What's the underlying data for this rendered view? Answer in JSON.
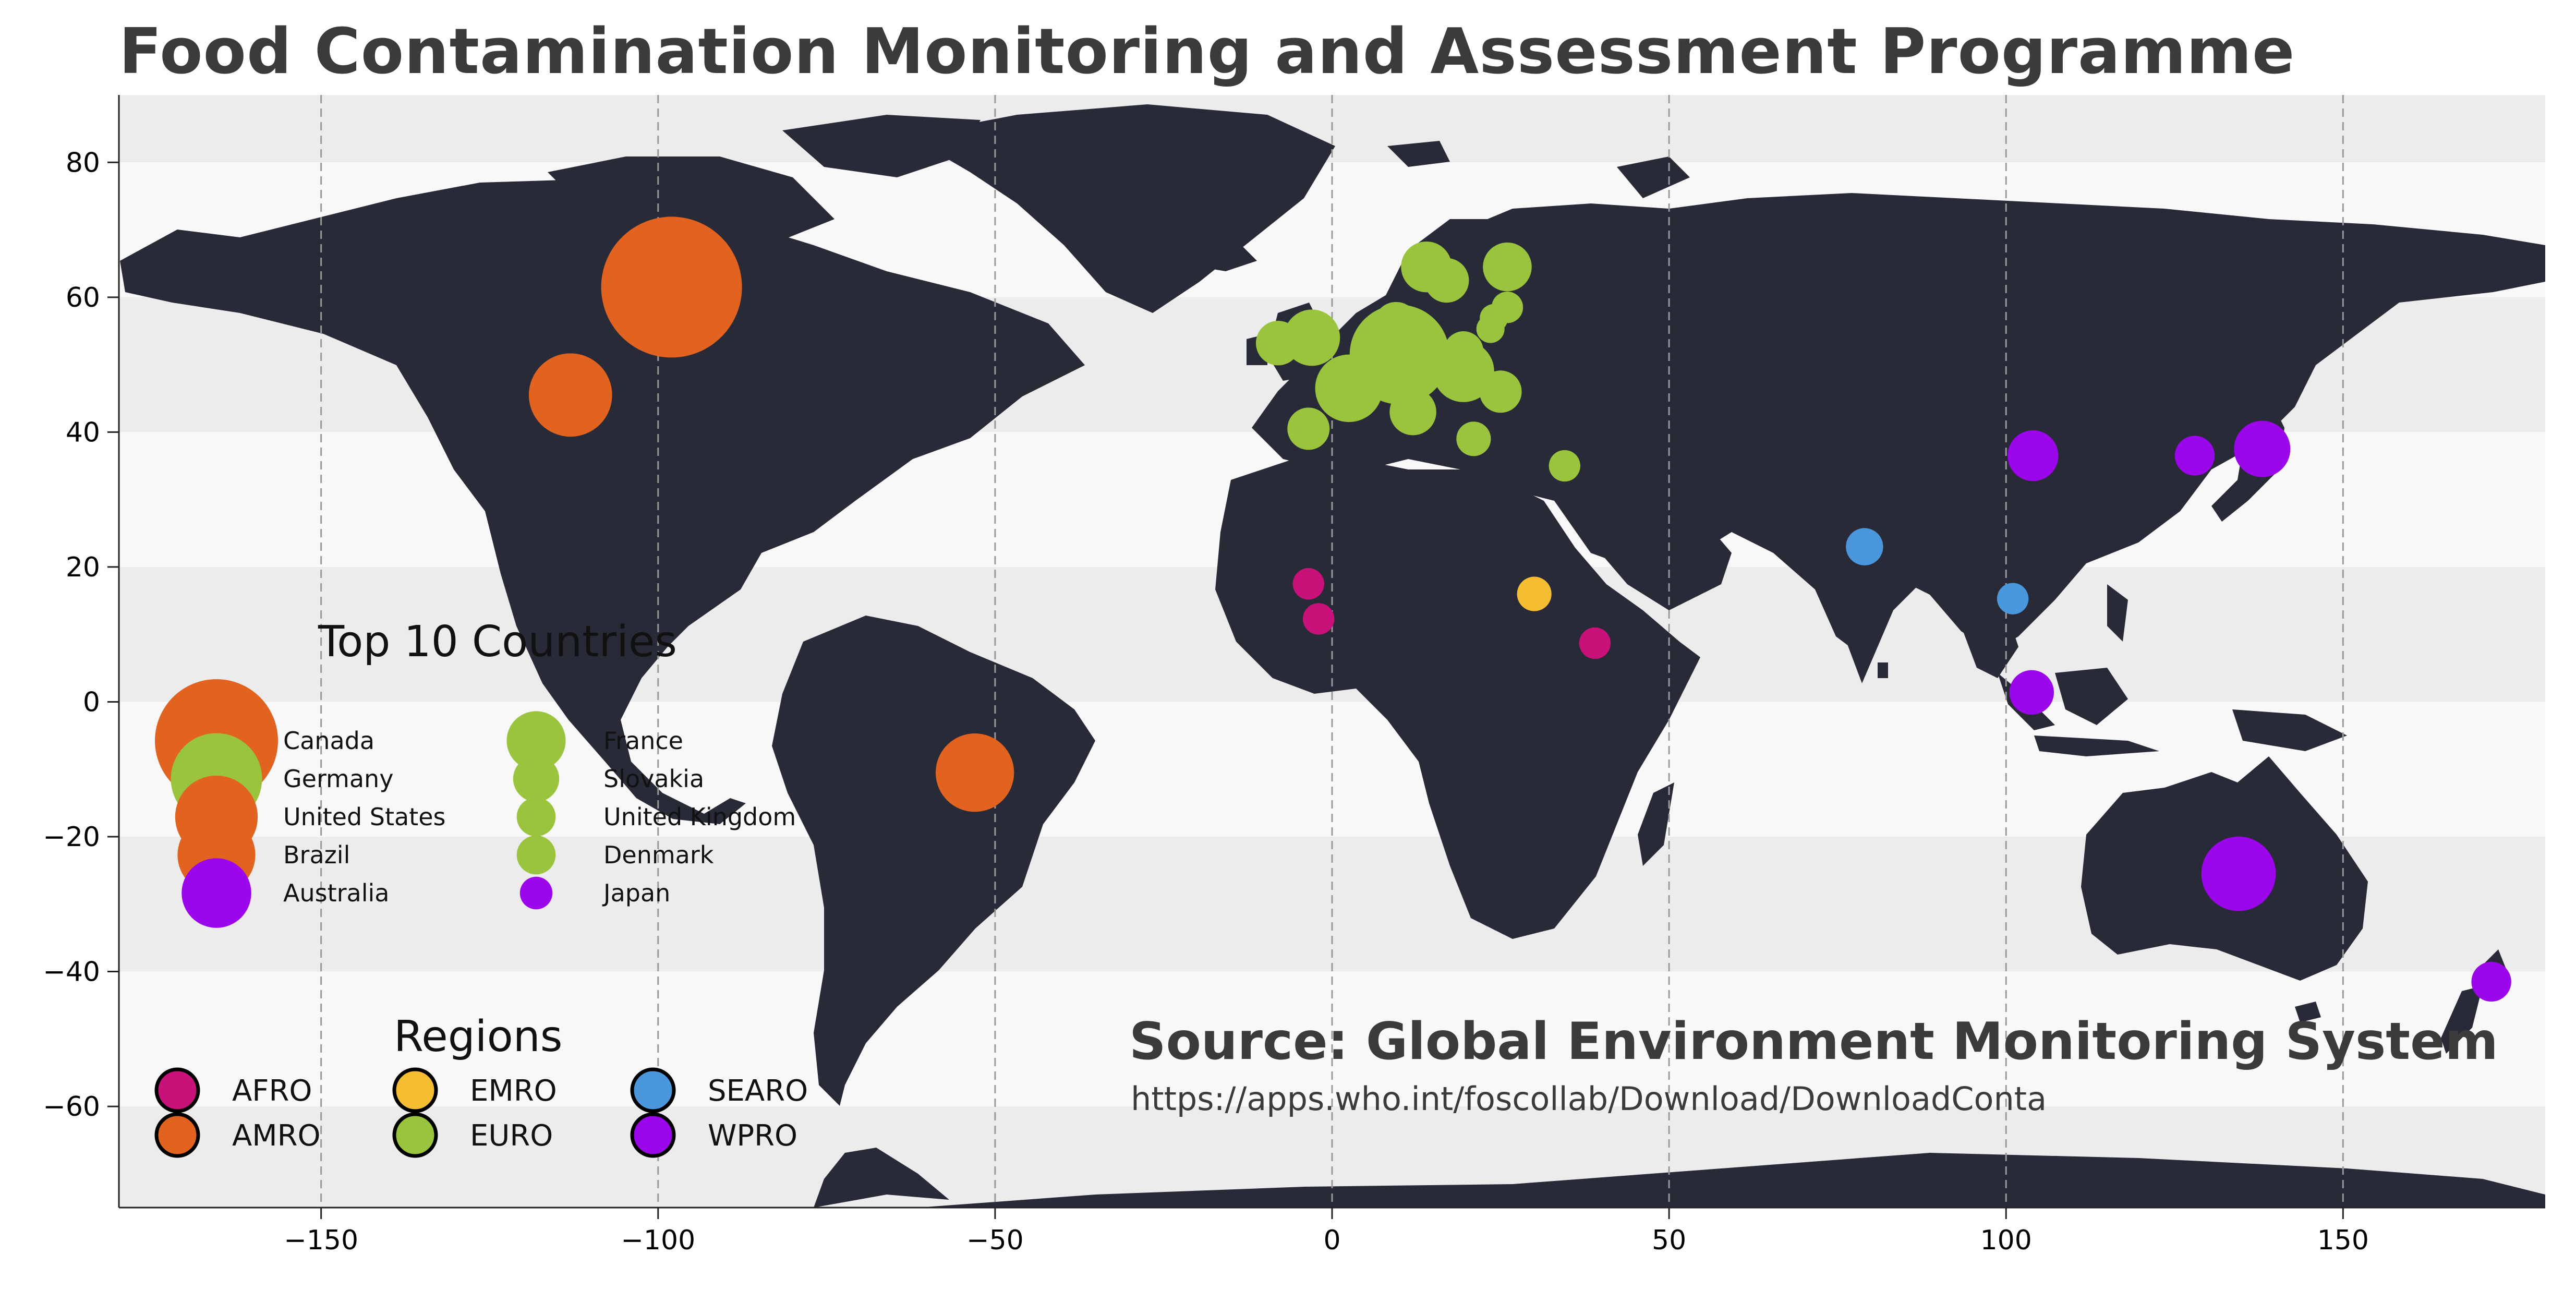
{
  "title": "Food Contamination Monitoring and Assessment Programme",
  "source": {
    "label": "Source: Global Environment Monitoring System",
    "url": "https://apps.who.int/foscollab/Download/DownloadConta"
  },
  "colors": {
    "AFRO": "#c8127a",
    "AMRO": "#e2621f",
    "EMRO": "#f5bd32",
    "EURO": "#9ac43d",
    "SEARO": "#4a97dc",
    "WPRO": "#9b06ea",
    "land": "#282a37",
    "band_light": "#f8f8f8",
    "band_dark": "#ececec"
  },
  "top10": {
    "title": "Top 10 Countries",
    "items": [
      {
        "name": "Canada",
        "region": "AMRO",
        "size": 1.0
      },
      {
        "name": "Germany",
        "region": "EURO",
        "size": 0.55
      },
      {
        "name": "United States",
        "region": "AMRO",
        "size": 0.45
      },
      {
        "name": "Brazil",
        "region": "AMRO",
        "size": 0.4
      },
      {
        "name": "Australia",
        "region": "WPRO",
        "size": 0.32
      },
      {
        "name": "France",
        "region": "EURO",
        "size": 0.23
      },
      {
        "name": "Slovakia",
        "region": "EURO",
        "size": 0.14
      },
      {
        "name": "United Kingdom",
        "region": "EURO",
        "size": 0.1
      },
      {
        "name": "Denmark",
        "region": "EURO",
        "size": 0.1
      },
      {
        "name": "Japan",
        "region": "WPRO",
        "size": 0.07
      }
    ]
  },
  "regions_legend": {
    "title": "Regions",
    "items": [
      "AFRO",
      "AMRO",
      "EMRO",
      "EURO",
      "SEARO",
      "WPRO"
    ]
  },
  "chart_data": {
    "type": "scatter",
    "xlim": [
      -180,
      180
    ],
    "ylim": [
      -75,
      90
    ],
    "xticks": [
      -150,
      -100,
      -50,
      0,
      50,
      100,
      150
    ],
    "yticks": [
      80,
      60,
      40,
      20,
      0,
      -20,
      -40,
      -60
    ],
    "x_tick_labels": [
      "−150",
      "−100",
      "−50",
      "0",
      "50",
      "100",
      "150"
    ],
    "y_tick_labels": [
      "80",
      "60",
      "40",
      "20",
      "0",
      "−20",
      "−40",
      "−60"
    ],
    "grid": "vertical dashed",
    "points": [
      {
        "lon": -98,
        "lat": 61.5,
        "size": 1.0,
        "region": "AMRO"
      },
      {
        "lon": -113,
        "lat": 45.5,
        "size": 0.35,
        "region": "AMRO"
      },
      {
        "lon": -53,
        "lat": -10.5,
        "size": 0.31,
        "region": "AMRO"
      },
      {
        "lon": 134.5,
        "lat": -25.5,
        "size": 0.28,
        "region": "WPRO"
      },
      {
        "lon": 10,
        "lat": 51.5,
        "size": 0.5,
        "region": "EURO"
      },
      {
        "lon": 2.5,
        "lat": 46.5,
        "size": 0.23,
        "region": "EURO"
      },
      {
        "lon": 19.5,
        "lat": 49,
        "size": 0.19,
        "region": "EURO"
      },
      {
        "lon": -3,
        "lat": 54,
        "size": 0.16,
        "region": "EURO"
      },
      {
        "lon": 14,
        "lat": 64.5,
        "size": 0.13,
        "region": "EURO"
      },
      {
        "lon": 26,
        "lat": 64.5,
        "size": 0.12,
        "region": "EURO"
      },
      {
        "lon": 17,
        "lat": 62.5,
        "size": 0.1,
        "region": "EURO"
      },
      {
        "lon": -8,
        "lat": 53.2,
        "size": 0.1,
        "region": "EURO"
      },
      {
        "lon": 9.5,
        "lat": 56,
        "size": 0.1,
        "region": "EURO"
      },
      {
        "lon": 12,
        "lat": 43,
        "size": 0.11,
        "region": "EURO"
      },
      {
        "lon": 25,
        "lat": 46,
        "size": 0.09,
        "region": "EURO"
      },
      {
        "lon": -3.5,
        "lat": 40.5,
        "size": 0.09,
        "region": "EURO"
      },
      {
        "lon": 19.5,
        "lat": 52,
        "size": 0.08,
        "region": "EURO"
      },
      {
        "lon": 21,
        "lat": 39,
        "size": 0.06,
        "region": "EURO"
      },
      {
        "lon": 26,
        "lat": 58.5,
        "size": 0.05,
        "region": "EURO"
      },
      {
        "lon": 24,
        "lat": 56.9,
        "size": 0.04,
        "region": "EURO"
      },
      {
        "lon": 23.5,
        "lat": 55.3,
        "size": 0.04,
        "region": "EURO"
      },
      {
        "lon": 34.5,
        "lat": 35,
        "size": 0.05,
        "region": "EURO"
      },
      {
        "lon": 138,
        "lat": 37.5,
        "size": 0.16,
        "region": "WPRO"
      },
      {
        "lon": 104,
        "lat": 36.5,
        "size": 0.13,
        "region": "WPRO"
      },
      {
        "lon": 128,
        "lat": 36.5,
        "size": 0.08,
        "region": "WPRO"
      },
      {
        "lon": 103.8,
        "lat": 1.4,
        "size": 0.1,
        "region": "WPRO"
      },
      {
        "lon": 172,
        "lat": -41.5,
        "size": 0.08,
        "region": "WPRO"
      },
      {
        "lon": 79,
        "lat": 23,
        "size": 0.07,
        "region": "SEARO"
      },
      {
        "lon": 101,
        "lat": 15.3,
        "size": 0.05,
        "region": "SEARO"
      },
      {
        "lon": 30,
        "lat": 16,
        "size": 0.06,
        "region": "EMRO"
      },
      {
        "lon": -3.5,
        "lat": 17.5,
        "size": 0.05,
        "region": "AFRO"
      },
      {
        "lon": -2,
        "lat": 12.3,
        "size": 0.05,
        "region": "AFRO"
      },
      {
        "lon": 39,
        "lat": 8.7,
        "size": 0.05,
        "region": "AFRO"
      }
    ]
  }
}
